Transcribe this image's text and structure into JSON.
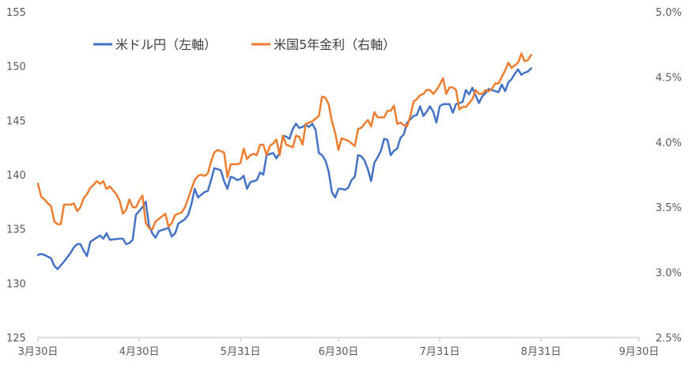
{
  "chart_data": {
    "type": "line",
    "left_axis": {
      "ticks": [
        "125",
        "130",
        "135",
        "140",
        "145",
        "150",
        "155"
      ],
      "range": [
        125,
        155
      ]
    },
    "right_axis": {
      "ticks": [
        "2.5%",
        "3.0%",
        "3.5%",
        "4.0%",
        "4.5%",
        "5.0%"
      ],
      "range": [
        2.5,
        5.0
      ]
    },
    "x_axis": {
      "range": [
        0,
        184
      ],
      "ticks": [
        {
          "label": "3月30日",
          "day": 0
        },
        {
          "label": "4月30日",
          "day": 31
        },
        {
          "label": "5月31日",
          "day": 62
        },
        {
          "label": "6月30日",
          "day": 92
        },
        {
          "label": "7月31日",
          "day": 123
        },
        {
          "label": "8月31日",
          "day": 154
        },
        {
          "label": "9月30日",
          "day": 184
        }
      ]
    },
    "legend": {
      "position": "top-left"
    },
    "grid": false,
    "series": [
      {
        "name": "米ドル円（左軸）",
        "axis": "left",
        "color": "#4472C4",
        "points": [
          [
            0,
            132.6
          ],
          [
            1,
            132.7
          ],
          [
            2,
            132.6
          ],
          [
            4,
            132.3
          ],
          [
            5,
            131.6
          ],
          [
            6,
            131.3
          ],
          [
            8,
            132.0
          ],
          [
            10,
            132.8
          ],
          [
            11,
            133.3
          ],
          [
            12,
            133.6
          ],
          [
            13,
            133.6
          ],
          [
            14,
            133.0
          ],
          [
            15,
            132.5
          ],
          [
            16,
            133.8
          ],
          [
            18,
            134.2
          ],
          [
            19,
            134.4
          ],
          [
            20,
            134.1
          ],
          [
            21,
            134.6
          ],
          [
            22,
            134.0
          ],
          [
            25,
            134.1
          ],
          [
            26,
            134.1
          ],
          [
            27,
            133.6
          ],
          [
            28,
            133.7
          ],
          [
            29,
            134.0
          ],
          [
            30,
            136.3
          ],
          [
            32,
            137.0
          ],
          [
            33,
            137.5
          ],
          [
            34,
            135.3
          ],
          [
            35,
            134.6
          ],
          [
            36,
            134.2
          ],
          [
            37,
            134.8
          ],
          [
            40,
            135.1
          ],
          [
            41,
            134.3
          ],
          [
            42,
            134.6
          ],
          [
            43,
            135.5
          ],
          [
            45,
            135.9
          ],
          [
            46,
            136.3
          ],
          [
            47,
            137.3
          ],
          [
            48,
            138.7
          ],
          [
            49,
            137.9
          ],
          [
            51,
            138.4
          ],
          [
            52,
            138.5
          ],
          [
            53,
            139.5
          ],
          [
            54,
            140.6
          ],
          [
            55,
            140.5
          ],
          [
            56,
            140.4
          ],
          [
            57,
            139.4
          ],
          [
            58,
            138.7
          ],
          [
            59,
            139.8
          ],
          [
            60,
            139.7
          ],
          [
            61,
            139.5
          ],
          [
            62,
            139.6
          ],
          [
            63,
            139.9
          ],
          [
            64,
            138.7
          ],
          [
            65,
            139.3
          ],
          [
            66,
            139.4
          ],
          [
            67,
            139.5
          ],
          [
            68,
            140.2
          ],
          [
            69,
            140.0
          ],
          [
            70,
            141.8
          ],
          [
            71,
            141.9
          ],
          [
            72,
            142.0
          ],
          [
            73,
            141.5
          ],
          [
            74,
            142.0
          ],
          [
            75,
            143.6
          ],
          [
            76,
            143.5
          ],
          [
            77,
            143.3
          ],
          [
            78,
            144.2
          ],
          [
            79,
            144.7
          ],
          [
            80,
            144.3
          ],
          [
            81,
            144.4
          ],
          [
            82,
            144.6
          ],
          [
            83,
            144.4
          ],
          [
            84,
            144.7
          ],
          [
            85,
            144.1
          ],
          [
            86,
            142.0
          ],
          [
            87,
            141.8
          ],
          [
            88,
            141.3
          ],
          [
            89,
            140.3
          ],
          [
            90,
            138.4
          ],
          [
            91,
            137.9
          ],
          [
            92,
            138.7
          ],
          [
            93,
            138.7
          ],
          [
            94,
            138.6
          ],
          [
            95,
            138.8
          ],
          [
            96,
            139.5
          ],
          [
            97,
            139.8
          ],
          [
            98,
            141.8
          ],
          [
            99,
            141.7
          ],
          [
            100,
            141.3
          ],
          [
            101,
            140.5
          ],
          [
            102,
            139.4
          ],
          [
            103,
            141.1
          ],
          [
            104,
            141.6
          ],
          [
            105,
            142.2
          ],
          [
            106,
            143.3
          ],
          [
            107,
            143.2
          ],
          [
            108,
            141.8
          ],
          [
            109,
            142.2
          ],
          [
            110,
            142.4
          ],
          [
            111,
            143.4
          ],
          [
            112,
            143.7
          ],
          [
            113,
            144.8
          ],
          [
            114,
            145.1
          ],
          [
            115,
            145.4
          ],
          [
            116,
            145.5
          ],
          [
            117,
            146.3
          ],
          [
            118,
            145.4
          ],
          [
            119,
            145.8
          ],
          [
            120,
            146.3
          ],
          [
            121,
            145.8
          ],
          [
            122,
            144.8
          ],
          [
            123,
            146.3
          ],
          [
            124,
            146.5
          ],
          [
            125,
            146.5
          ],
          [
            126,
            146.5
          ],
          [
            127,
            145.7
          ],
          [
            128,
            146.5
          ],
          [
            129,
            146.6
          ],
          [
            130,
            146.7
          ],
          [
            131,
            147.8
          ],
          [
            132,
            147.4
          ],
          [
            133,
            148.0
          ],
          [
            134,
            147.3
          ],
          [
            135,
            146.6
          ],
          [
            136,
            147.2
          ],
          [
            137,
            147.5
          ],
          [
            138,
            147.9
          ],
          [
            139,
            147.8
          ],
          [
            140,
            147.7
          ],
          [
            141,
            147.6
          ],
          [
            142,
            148.3
          ],
          [
            143,
            147.7
          ],
          [
            144,
            148.5
          ],
          [
            145,
            148.8
          ],
          [
            146,
            149.3
          ],
          [
            147,
            149.7
          ],
          [
            148,
            149.2
          ],
          [
            149,
            149.4
          ],
          [
            150,
            149.5
          ],
          [
            151,
            149.8
          ]
        ]
      },
      {
        "name": "米国5年金利（右軸）",
        "axis": "right",
        "color": "#ED7D31",
        "points": [
          [
            0,
            3.68
          ],
          [
            1,
            3.58
          ],
          [
            2,
            3.56
          ],
          [
            3,
            3.53
          ],
          [
            4,
            3.51
          ],
          [
            5,
            3.39
          ],
          [
            6,
            3.37
          ],
          [
            7,
            3.37
          ],
          [
            8,
            3.52
          ],
          [
            9,
            3.52
          ],
          [
            10,
            3.52
          ],
          [
            11,
            3.53
          ],
          [
            12,
            3.47
          ],
          [
            13,
            3.5
          ],
          [
            14,
            3.57
          ],
          [
            15,
            3.6
          ],
          [
            16,
            3.65
          ],
          [
            17,
            3.67
          ],
          [
            18,
            3.7
          ],
          [
            19,
            3.68
          ],
          [
            20,
            3.7
          ],
          [
            21,
            3.64
          ],
          [
            22,
            3.66
          ],
          [
            23,
            3.63
          ],
          [
            24,
            3.6
          ],
          [
            25,
            3.55
          ],
          [
            26,
            3.45
          ],
          [
            27,
            3.48
          ],
          [
            28,
            3.56
          ],
          [
            29,
            3.5
          ],
          [
            30,
            3.5
          ],
          [
            31,
            3.55
          ],
          [
            32,
            3.59
          ],
          [
            33,
            3.38
          ],
          [
            34,
            3.34
          ],
          [
            35,
            3.33
          ],
          [
            36,
            3.39
          ],
          [
            37,
            3.41
          ],
          [
            38,
            3.43
          ],
          [
            39,
            3.45
          ],
          [
            40,
            3.35
          ],
          [
            41,
            3.38
          ],
          [
            42,
            3.44
          ],
          [
            43,
            3.45
          ],
          [
            44,
            3.46
          ],
          [
            45,
            3.5
          ],
          [
            46,
            3.57
          ],
          [
            47,
            3.64
          ],
          [
            48,
            3.71
          ],
          [
            49,
            3.74
          ],
          [
            50,
            3.75
          ],
          [
            51,
            3.74
          ],
          [
            52,
            3.76
          ],
          [
            53,
            3.85
          ],
          [
            54,
            3.92
          ],
          [
            55,
            3.94
          ],
          [
            56,
            3.93
          ],
          [
            57,
            3.92
          ],
          [
            58,
            3.73
          ],
          [
            59,
            3.83
          ],
          [
            60,
            3.83
          ],
          [
            61,
            3.83
          ],
          [
            62,
            3.84
          ],
          [
            63,
            3.95
          ],
          [
            64,
            3.87
          ],
          [
            65,
            3.9
          ],
          [
            66,
            3.91
          ],
          [
            67,
            3.9
          ],
          [
            68,
            3.98
          ],
          [
            69,
            3.98
          ],
          [
            70,
            3.9
          ],
          [
            71,
            3.97
          ],
          [
            72,
            3.99
          ],
          [
            73,
            4.02
          ],
          [
            74,
            3.9
          ],
          [
            75,
            4.05
          ],
          [
            76,
            3.98
          ],
          [
            77,
            3.97
          ],
          [
            78,
            3.96
          ],
          [
            79,
            4.05
          ],
          [
            80,
            4.04
          ],
          [
            81,
            3.98
          ],
          [
            82,
            4.14
          ],
          [
            83,
            4.15
          ],
          [
            84,
            4.16
          ],
          [
            85,
            4.18
          ],
          [
            86,
            4.2
          ],
          [
            87,
            4.35
          ],
          [
            88,
            4.34
          ],
          [
            89,
            4.29
          ],
          [
            90,
            4.16
          ],
          [
            91,
            4.07
          ],
          [
            92,
            3.94
          ],
          [
            93,
            4.03
          ],
          [
            94,
            4.02
          ],
          [
            95,
            4.01
          ],
          [
            96,
            3.99
          ],
          [
            97,
            3.97
          ],
          [
            98,
            4.1
          ],
          [
            99,
            4.11
          ],
          [
            100,
            4.14
          ],
          [
            101,
            4.17
          ],
          [
            102,
            4.12
          ],
          [
            103,
            4.23
          ],
          [
            104,
            4.19
          ],
          [
            105,
            4.19
          ],
          [
            106,
            4.19
          ],
          [
            107,
            4.24
          ],
          [
            108,
            4.24
          ],
          [
            109,
            4.28
          ],
          [
            110,
            4.14
          ],
          [
            111,
            4.15
          ],
          [
            112,
            4.13
          ],
          [
            113,
            4.12
          ],
          [
            114,
            4.2
          ],
          [
            115,
            4.31
          ],
          [
            116,
            4.33
          ],
          [
            117,
            4.36
          ],
          [
            118,
            4.37
          ],
          [
            119,
            4.4
          ],
          [
            120,
            4.4
          ],
          [
            121,
            4.37
          ],
          [
            122,
            4.4
          ],
          [
            123,
            4.44
          ],
          [
            124,
            4.49
          ],
          [
            125,
            4.37
          ],
          [
            126,
            4.42
          ],
          [
            127,
            4.42
          ],
          [
            128,
            4.4
          ],
          [
            129,
            4.25
          ],
          [
            130,
            4.27
          ],
          [
            131,
            4.27
          ],
          [
            132,
            4.3
          ],
          [
            133,
            4.33
          ],
          [
            134,
            4.4
          ],
          [
            135,
            4.37
          ],
          [
            136,
            4.37
          ],
          [
            137,
            4.4
          ],
          [
            138,
            4.39
          ],
          [
            139,
            4.41
          ],
          [
            140,
            4.45
          ],
          [
            141,
            4.45
          ],
          [
            142,
            4.5
          ],
          [
            143,
            4.55
          ],
          [
            144,
            4.61
          ],
          [
            145,
            4.57
          ],
          [
            146,
            4.59
          ],
          [
            147,
            4.61
          ],
          [
            148,
            4.68
          ],
          [
            149,
            4.62
          ],
          [
            150,
            4.63
          ],
          [
            151,
            4.67
          ]
        ]
      }
    ]
  }
}
